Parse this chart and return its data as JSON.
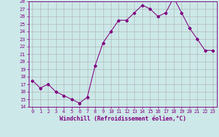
{
  "x": [
    0,
    1,
    2,
    3,
    4,
    5,
    6,
    7,
    8,
    9,
    10,
    11,
    12,
    13,
    14,
    15,
    16,
    17,
    18,
    19,
    20,
    21,
    22,
    23
  ],
  "y": [
    17.5,
    16.5,
    17.0,
    16.0,
    15.5,
    15.0,
    14.5,
    15.3,
    19.5,
    22.5,
    24.0,
    25.5,
    25.5,
    26.5,
    27.5,
    27.0,
    26.0,
    26.5,
    28.5,
    26.5,
    24.5,
    23.0,
    21.5,
    21.5
  ],
  "xlabel": "Windchill (Refroidissement éolien,°C)",
  "ylim": [
    14,
    28
  ],
  "xlim": [
    -0.5,
    23.5
  ],
  "yticks": [
    14,
    15,
    16,
    17,
    18,
    19,
    20,
    21,
    22,
    23,
    24,
    25,
    26,
    27,
    28
  ],
  "xticks": [
    0,
    1,
    2,
    3,
    4,
    5,
    6,
    7,
    8,
    9,
    10,
    11,
    12,
    13,
    14,
    15,
    16,
    17,
    18,
    19,
    20,
    21,
    22,
    23
  ],
  "line_color": "#800080",
  "marker": "D",
  "marker_size": 2,
  "bg_color": "#cce8e8",
  "grid_color": "#aaaaaa",
  "font_color": "#800080",
  "label_fontsize": 6,
  "tick_fontsize": 5
}
